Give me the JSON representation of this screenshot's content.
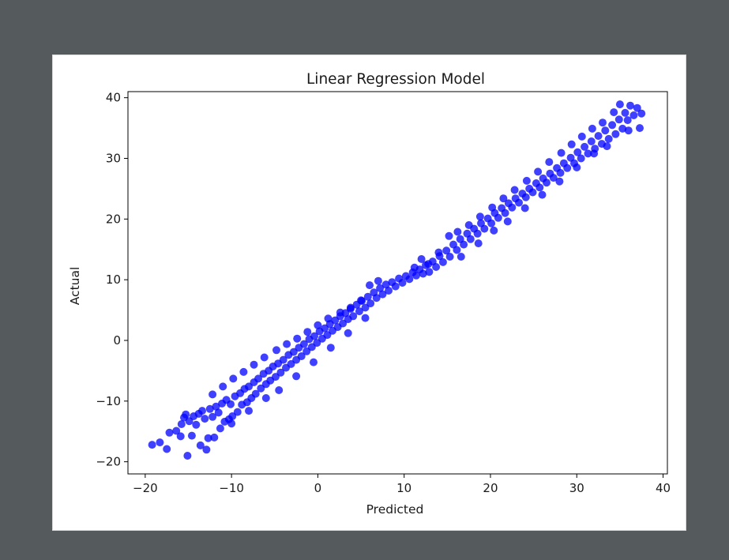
{
  "chart_data": {
    "type": "scatter",
    "title": "Linear Regression Model",
    "xlabel": "Predicted",
    "ylabel": "Actual",
    "xlim": [
      -22,
      40.5
    ],
    "ylim": [
      -22,
      41
    ],
    "xticks": [
      -20,
      -10,
      0,
      10,
      20,
      30,
      40
    ],
    "yticks": [
      -20,
      -10,
      0,
      10,
      20,
      30,
      40
    ],
    "xtick_labels": [
      "−20",
      "−10",
      "0",
      "10",
      "20",
      "30",
      "40"
    ],
    "ytick_labels": [
      "−20",
      "−10",
      "0",
      "10",
      "20",
      "30",
      "40"
    ],
    "grid": false,
    "point_color": "#0000ff",
    "point_opacity": 0.75,
    "series": [
      {
        "points": [
          [
            -19.2,
            -17.2
          ],
          [
            -18.3,
            -16.8
          ],
          [
            -17.5,
            -17.9
          ],
          [
            -17.2,
            -15.2
          ],
          [
            -16.4,
            -14.9
          ],
          [
            -15.9,
            -15.8
          ],
          [
            -15.8,
            -13.8
          ],
          [
            -15.5,
            -12.7
          ],
          [
            -15.3,
            -12.2
          ],
          [
            -15.1,
            -19.0
          ],
          [
            -14.9,
            -13.3
          ],
          [
            -14.6,
            -15.7
          ],
          [
            -14.4,
            -12.5
          ],
          [
            -14.1,
            -13.9
          ],
          [
            -13.8,
            -12.1
          ],
          [
            -13.6,
            -17.3
          ],
          [
            -13.4,
            -11.6
          ],
          [
            -13.1,
            -12.9
          ],
          [
            -12.9,
            -18.0
          ],
          [
            -12.7,
            -16.1
          ],
          [
            -12.5,
            -11.3
          ],
          [
            -12.2,
            -12.6
          ],
          [
            -12.0,
            -16.0
          ],
          [
            -11.8,
            -10.9
          ],
          [
            -11.5,
            -11.9
          ],
          [
            -11.3,
            -14.5
          ],
          [
            -11.1,
            -10.4
          ],
          [
            -10.8,
            -13.4
          ],
          [
            -10.6,
            -9.8
          ],
          [
            -10.3,
            -13.0
          ],
          [
            -10.1,
            -10.5
          ],
          [
            -9.9,
            -12.5
          ],
          [
            -9.6,
            -9.2
          ],
          [
            -9.3,
            -11.8
          ],
          [
            -9.0,
            -8.7
          ],
          [
            -8.8,
            -10.6
          ],
          [
            -8.5,
            -8.0
          ],
          [
            -8.2,
            -10.2
          ],
          [
            -8.0,
            -7.6
          ],
          [
            -7.7,
            -9.5
          ],
          [
            -7.4,
            -6.9
          ],
          [
            -7.2,
            -8.8
          ],
          [
            -6.9,
            -6.3
          ],
          [
            -6.6,
            -7.9
          ],
          [
            -6.3,
            -5.5
          ],
          [
            -6.0,
            -7.2
          ],
          [
            -5.7,
            -5.0
          ],
          [
            -5.5,
            -6.6
          ],
          [
            -5.2,
            -4.3
          ],
          [
            -4.9,
            -6.0
          ],
          [
            -4.6,
            -3.8
          ],
          [
            -4.3,
            -5.3
          ],
          [
            -4.0,
            -3.2
          ],
          [
            -3.7,
            -4.5
          ],
          [
            -3.4,
            -2.4
          ],
          [
            -3.1,
            -3.9
          ],
          [
            -2.8,
            -1.9
          ],
          [
            -2.5,
            -3.2
          ],
          [
            -2.2,
            -1.2
          ],
          [
            -1.9,
            -2.6
          ],
          [
            -1.6,
            -0.6
          ],
          [
            -1.3,
            -1.8
          ],
          [
            -1.0,
            0.2
          ],
          [
            -0.7,
            -1.1
          ],
          [
            -0.4,
            0.7
          ],
          [
            -0.1,
            -0.4
          ],
          [
            0.2,
            1.5
          ],
          [
            0.5,
            0.3
          ],
          [
            0.8,
            2.0
          ],
          [
            1.1,
            0.9
          ],
          [
            1.4,
            2.7
          ],
          [
            1.7,
            1.6
          ],
          [
            2.0,
            3.3
          ],
          [
            2.3,
            2.2
          ],
          [
            2.6,
            4.0
          ],
          [
            2.9,
            2.8
          ],
          [
            3.2,
            4.5
          ],
          [
            3.5,
            3.5
          ],
          [
            3.8,
            5.2
          ],
          [
            4.1,
            4.0
          ],
          [
            4.5,
            5.9
          ],
          [
            4.8,
            4.8
          ],
          [
            5.1,
            6.5
          ],
          [
            5.5,
            5.4
          ],
          [
            5.8,
            7.2
          ],
          [
            6.1,
            6.1
          ],
          [
            6.5,
            7.9
          ],
          [
            6.8,
            7.0
          ],
          [
            7.2,
            8.6
          ],
          [
            7.5,
            7.6
          ],
          [
            7.9,
            9.2
          ],
          [
            8.2,
            8.2
          ],
          [
            8.6,
            9.6
          ],
          [
            9.0,
            8.9
          ],
          [
            9.4,
            10.2
          ],
          [
            9.8,
            9.5
          ],
          [
            10.2,
            10.6
          ],
          [
            10.6,
            10.1
          ],
          [
            11.0,
            11.2
          ],
          [
            11.4,
            10.7
          ],
          [
            11.8,
            11.7
          ],
          [
            12.2,
            11.0
          ],
          [
            12.5,
            12.4
          ],
          [
            12.9,
            11.3
          ],
          [
            13.3,
            13.0
          ],
          [
            13.7,
            12.1
          ],
          [
            14.1,
            13.9
          ],
          [
            14.5,
            12.9
          ],
          [
            14.9,
            14.8
          ],
          [
            15.3,
            13.8
          ],
          [
            15.7,
            15.8
          ],
          [
            16.1,
            14.9
          ],
          [
            16.5,
            16.7
          ],
          [
            16.9,
            15.8
          ],
          [
            17.3,
            17.6
          ],
          [
            17.7,
            16.7
          ],
          [
            18.1,
            18.4
          ],
          [
            18.5,
            17.6
          ],
          [
            18.9,
            19.3
          ],
          [
            19.3,
            18.4
          ],
          [
            19.7,
            20.1
          ],
          [
            20.1,
            19.3
          ],
          [
            20.5,
            21.0
          ],
          [
            20.9,
            20.2
          ],
          [
            21.3,
            21.8
          ],
          [
            21.7,
            21.0
          ],
          [
            22.1,
            22.6
          ],
          [
            22.5,
            21.9
          ],
          [
            22.9,
            23.4
          ],
          [
            23.3,
            22.7
          ],
          [
            23.7,
            24.2
          ],
          [
            24.1,
            23.6
          ],
          [
            24.5,
            25.0
          ],
          [
            24.9,
            24.4
          ],
          [
            25.3,
            25.9
          ],
          [
            25.7,
            25.2
          ],
          [
            26.1,
            26.7
          ],
          [
            26.5,
            26.0
          ],
          [
            26.9,
            27.5
          ],
          [
            27.3,
            26.8
          ],
          [
            27.7,
            28.4
          ],
          [
            28.1,
            27.6
          ],
          [
            28.5,
            29.2
          ],
          [
            28.9,
            28.4
          ],
          [
            29.3,
            30.1
          ],
          [
            29.7,
            29.2
          ],
          [
            30.1,
            31.0
          ],
          [
            30.5,
            30.0
          ],
          [
            30.9,
            31.9
          ],
          [
            31.3,
            30.8
          ],
          [
            31.7,
            32.8
          ],
          [
            32.1,
            31.6
          ],
          [
            32.5,
            33.7
          ],
          [
            32.9,
            32.4
          ],
          [
            33.3,
            34.6
          ],
          [
            33.7,
            33.2
          ],
          [
            34.1,
            35.5
          ],
          [
            34.5,
            34.0
          ],
          [
            34.9,
            36.4
          ],
          [
            35.3,
            34.9
          ],
          [
            35.6,
            37.5
          ],
          [
            35.9,
            36.3
          ],
          [
            36.2,
            38.7
          ],
          [
            36.6,
            37.1
          ],
          [
            37.0,
            38.3
          ],
          [
            37.3,
            35.0
          ],
          [
            37.5,
            37.4
          ],
          [
            36.0,
            34.6
          ],
          [
            35.0,
            38.9
          ],
          [
            34.3,
            37.6
          ],
          [
            33.0,
            35.9
          ],
          [
            31.8,
            34.9
          ],
          [
            30.6,
            33.6
          ],
          [
            29.4,
            32.3
          ],
          [
            28.2,
            30.9
          ],
          [
            26.8,
            29.4
          ],
          [
            25.5,
            27.8
          ],
          [
            24.2,
            26.3
          ],
          [
            22.8,
            24.8
          ],
          [
            21.5,
            23.4
          ],
          [
            20.2,
            21.9
          ],
          [
            18.8,
            20.4
          ],
          [
            17.5,
            19.0
          ],
          [
            16.2,
            17.9
          ],
          [
            15.2,
            17.2
          ],
          [
            14.0,
            14.5
          ],
          [
            12.8,
            12.6
          ],
          [
            12.0,
            13.4
          ],
          [
            11.2,
            12.0
          ],
          [
            7.0,
            9.8
          ],
          [
            6.0,
            9.1
          ],
          [
            5.0,
            6.6
          ],
          [
            3.8,
            5.4
          ],
          [
            2.6,
            4.6
          ],
          [
            1.2,
            3.6
          ],
          [
            0.0,
            2.5
          ],
          [
            -1.2,
            1.4
          ],
          [
            -2.4,
            0.3
          ],
          [
            -3.6,
            -0.6
          ],
          [
            -4.8,
            -1.6
          ],
          [
            -6.2,
            -2.8
          ],
          [
            -7.4,
            -4.0
          ],
          [
            -8.6,
            -5.2
          ],
          [
            -9.8,
            -6.3
          ],
          [
            -11.0,
            -7.6
          ],
          [
            -12.2,
            -8.9
          ],
          [
            -6.0,
            -9.5
          ],
          [
            -8.0,
            -11.6
          ],
          [
            -10.0,
            -13.7
          ],
          [
            -4.5,
            -8.2
          ],
          [
            -2.5,
            -5.9
          ],
          [
            -0.5,
            -3.6
          ],
          [
            1.5,
            -1.2
          ],
          [
            3.5,
            1.2
          ],
          [
            5.5,
            3.7
          ],
          [
            22.0,
            19.6
          ],
          [
            24.0,
            21.8
          ],
          [
            26.0,
            24.0
          ],
          [
            28.0,
            26.2
          ],
          [
            30.0,
            28.5
          ],
          [
            32.0,
            30.8
          ],
          [
            33.5,
            32.0
          ],
          [
            16.6,
            13.8
          ],
          [
            18.6,
            16.0
          ],
          [
            20.4,
            18.1
          ]
        ]
      }
    ]
  }
}
